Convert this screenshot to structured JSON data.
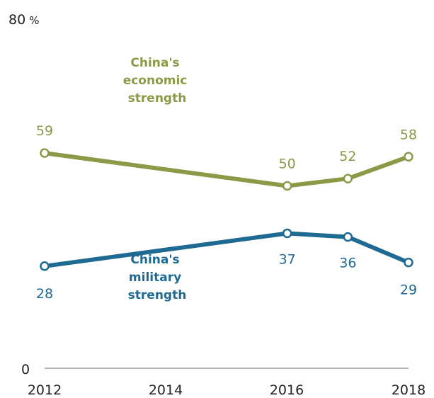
{
  "chart_data": {
    "type": "line",
    "x": [
      2012,
      2016,
      2017,
      2018
    ],
    "xticks": [
      "2012",
      "2014",
      "2016",
      "2018"
    ],
    "ylim": [
      0,
      80
    ],
    "y_top_label": "80",
    "y_top_unit": "%",
    "y_bottom_label": "0",
    "series": [
      {
        "name_lines": [
          "China's",
          "economic",
          "strength"
        ],
        "color": "#8c9a48",
        "values": [
          59,
          50,
          52,
          58
        ],
        "labels": [
          "59",
          "50",
          "52",
          "58"
        ]
      },
      {
        "name_lines": [
          "China's",
          "military",
          "strength"
        ],
        "color": "#1f6a93",
        "values": [
          28,
          37,
          36,
          29
        ],
        "labels": [
          "28",
          "37",
          "36",
          "29"
        ]
      }
    ]
  }
}
